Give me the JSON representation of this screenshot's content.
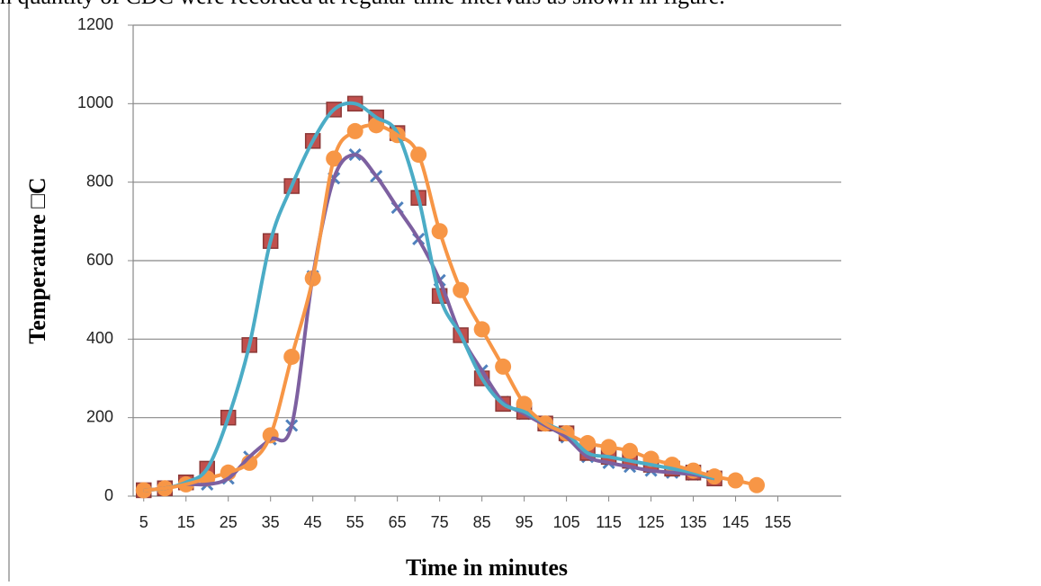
{
  "caption": "n quantity of CDC were recorded at regular time intervals as shown in figure.",
  "chart_data": {
    "type": "line",
    "xlabel": "Time in minutes",
    "ylabel": "Temperature □C",
    "x": [
      5,
      10,
      15,
      20,
      25,
      30,
      35,
      40,
      45,
      50,
      55,
      60,
      65,
      70,
      75,
      80,
      85,
      90,
      95,
      100,
      105,
      110,
      115,
      120,
      125,
      130,
      135,
      140,
      145,
      150
    ],
    "xlim": [
      2.5,
      170
    ],
    "xticks": [
      5,
      15,
      25,
      35,
      45,
      55,
      65,
      75,
      85,
      95,
      105,
      115,
      125,
      135,
      145,
      155
    ],
    "ylim": [
      0,
      1200
    ],
    "yticks": [
      0,
      200,
      400,
      600,
      800,
      1000,
      1200
    ],
    "grid": true,
    "series": [
      {
        "color": "#7d60a0",
        "marker_color": "#4f81bd",
        "marker": "x",
        "values": [
          15,
          20,
          30,
          30,
          45,
          100,
          145,
          180,
          560,
          810,
          870,
          815,
          735,
          655,
          550,
          410,
          320,
          240,
          210,
          180,
          150,
          100,
          85,
          75,
          65,
          60,
          55,
          45,
          null,
          null
        ]
      },
      {
        "color": "#4bacc6",
        "marker_color": "#c0504d",
        "marker": "square",
        "values": [
          15,
          20,
          35,
          70,
          200,
          385,
          650,
          790,
          905,
          985,
          1000,
          965,
          925,
          760,
          510,
          410,
          300,
          235,
          215,
          185,
          160,
          110,
          100,
          90,
          80,
          70,
          60,
          45,
          null,
          null
        ]
      },
      {
        "color": "#f79646",
        "marker_color": "#f79646",
        "marker": "circle",
        "values": [
          15,
          20,
          30,
          45,
          60,
          85,
          155,
          355,
          555,
          860,
          930,
          945,
          920,
          870,
          675,
          525,
          425,
          330,
          235,
          185,
          160,
          135,
          125,
          115,
          95,
          80,
          65,
          50,
          40,
          28
        ]
      }
    ]
  }
}
